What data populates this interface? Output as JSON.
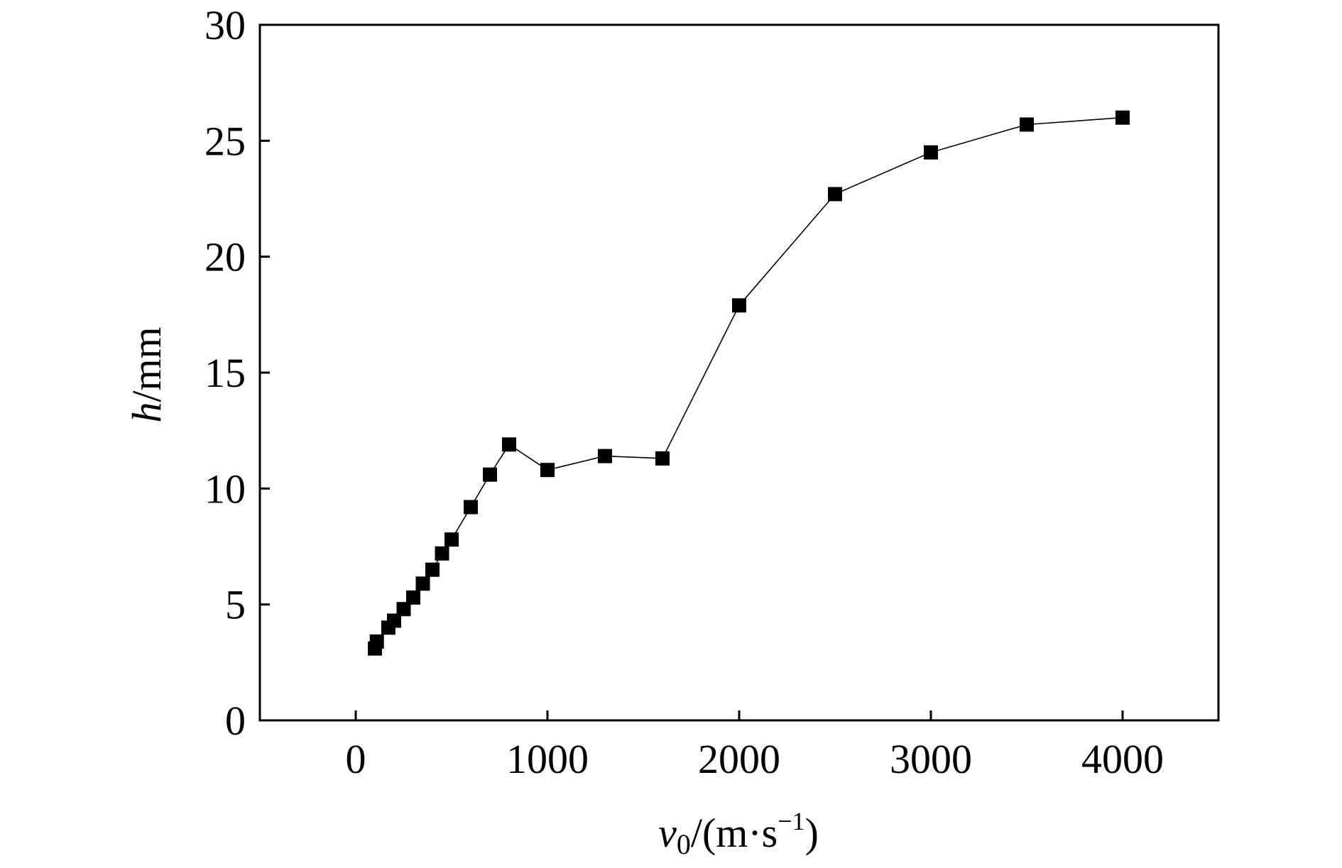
{
  "chart_data": {
    "type": "line",
    "title": "",
    "xlabel": {
      "symbol": "v",
      "subscript": "0",
      "unit_open": "/(m·s",
      "superscript": "−1",
      "unit_close": ")"
    },
    "ylabel": {
      "symbol": "h",
      "unit": "/mm"
    },
    "xlim": [
      -500,
      4500
    ],
    "ylim": [
      0,
      30
    ],
    "x_ticks": [
      0,
      1000,
      2000,
      3000,
      4000
    ],
    "x_tick_labels": [
      "0",
      "1000",
      "2000",
      "3000",
      "4000"
    ],
    "y_ticks": [
      0,
      5,
      10,
      15,
      20,
      25,
      30
    ],
    "y_tick_labels": [
      "0",
      "5",
      "10",
      "15",
      "20",
      "25",
      "30"
    ],
    "grid": false,
    "legend": "none",
    "marker": "square",
    "colors": {
      "series": "#000000",
      "line": "#000000",
      "axes": "#000000"
    },
    "series": [
      {
        "x": [
          100,
          110,
          170,
          200,
          250,
          300,
          350,
          400,
          450,
          500,
          600,
          700,
          800,
          1000,
          1300,
          1600,
          2000,
          2500,
          3000,
          3500,
          4000
        ],
        "y": [
          3.1,
          3.4,
          4.0,
          4.3,
          4.8,
          5.3,
          5.9,
          6.5,
          7.2,
          7.8,
          9.2,
          10.6,
          11.9,
          10.8,
          11.4,
          11.3,
          17.9,
          22.7,
          24.5,
          25.7,
          26.0
        ]
      }
    ]
  }
}
